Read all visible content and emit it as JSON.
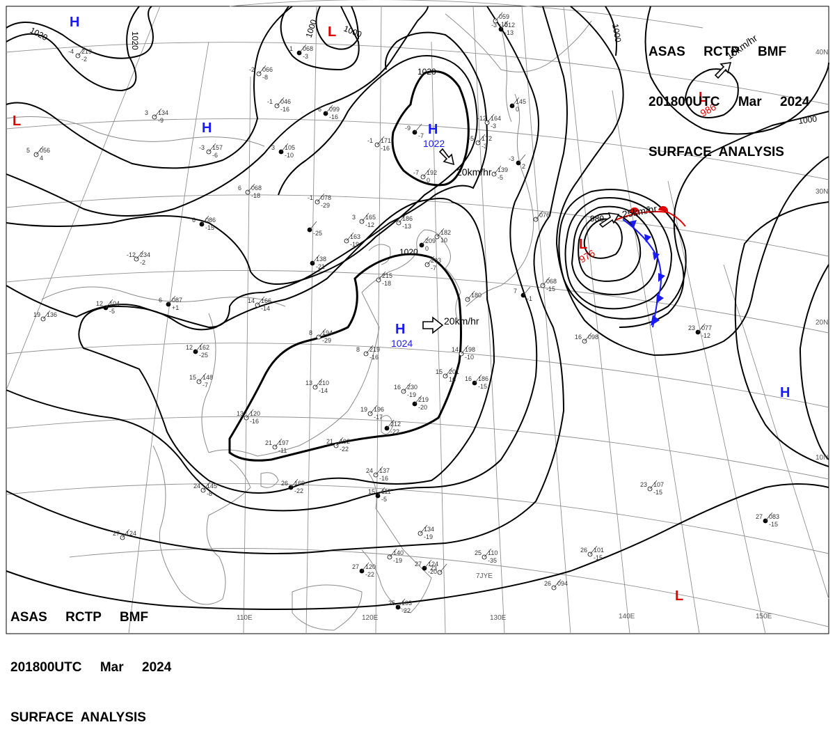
{
  "header_top": {
    "line1": "ASAS     RCTP     BMF",
    "line2": "201800UTC     Mar     2024",
    "line3": "SURFACE  ANALYSIS"
  },
  "header_bottom": {
    "line1": "ASAS     RCTP     BMF",
    "line2": "201800UTC     Mar     2024",
    "line3": "SURFACE  ANALYSIS"
  },
  "isobar_labels": [
    "1020",
    "1020",
    "1000",
    "1000",
    "1020",
    "1000",
    "1000",
    "1020",
    "980"
  ],
  "pressure_centers": [
    {
      "type": "H",
      "value": "",
      "color": "#1a1aff"
    },
    {
      "type": "L",
      "value": "",
      "color": "#e00000"
    },
    {
      "type": "H",
      "value": "",
      "color": "#1a1aff"
    },
    {
      "type": "L",
      "value": "",
      "color": "#e00000"
    },
    {
      "type": "H",
      "value": "1022",
      "color": "#1a1aff"
    },
    {
      "type": "L",
      "value": "986",
      "color": "#e00000"
    },
    {
      "type": "L",
      "value": "976",
      "color": "#e00000"
    },
    {
      "type": "H",
      "value": "1024",
      "color": "#1a1aff"
    },
    {
      "type": "H",
      "value": "",
      "color": "#1a1aff"
    },
    {
      "type": "L",
      "value": "",
      "color": "#e00000"
    }
  ],
  "motion_labels": [
    "20km/hr",
    "25km/hr",
    "20km/hr",
    "10km/hr"
  ],
  "latitude_labels": [
    "40N",
    "30N",
    "20N",
    "10N"
  ],
  "longitude_labels": [
    "110E",
    "120E",
    "130E",
    "140E",
    "150E"
  ],
  "station_labels": [
    "7JYE"
  ],
  "station_obs": [
    {
      "t": "-3",
      "p": "012",
      "d": "-13"
    },
    {
      "t": "",
      "p": "059",
      "d": "-15"
    },
    {
      "t": "-4",
      "p": "219",
      "d": "-2"
    },
    {
      "t": "1",
      "p": "068",
      "d": "-3"
    },
    {
      "t": "-2",
      "p": "066",
      "d": "-8"
    },
    {
      "t": "-1",
      "p": "046",
      "d": "-16"
    },
    {
      "t": "-6",
      "p": "099",
      "d": "-16"
    },
    {
      "t": "3",
      "p": "134",
      "d": "-9"
    },
    {
      "t": "-3",
      "p": "157",
      "d": "-6"
    },
    {
      "t": "3",
      "p": "105",
      "d": "-10"
    },
    {
      "t": "5",
      "p": "056",
      "d": "4"
    },
    {
      "t": "-1",
      "p": "171",
      "d": "-16"
    },
    {
      "t": "-9",
      "p": "",
      "d": "-7"
    },
    {
      "t": "-12",
      "p": "164",
      "d": "-3"
    },
    {
      "t": "-5",
      "p": "172",
      "d": "-3"
    },
    {
      "t": "",
      "p": "145",
      "d": "0"
    },
    {
      "t": "-7",
      "p": "192",
      "d": "0"
    },
    {
      "t": "",
      "p": "139",
      "d": "-5"
    },
    {
      "t": "-3",
      "p": "",
      "d": "2"
    },
    {
      "t": "6",
      "p": "068",
      "d": "-18"
    },
    {
      "t": "-1",
      "p": "078",
      "d": "-29"
    },
    {
      "t": "6",
      "p": "086",
      "d": "-15"
    },
    {
      "t": "3",
      "p": "165",
      "d": "-12"
    },
    {
      "t": "",
      "p": "186",
      "d": "-13"
    },
    {
      "t": "",
      "p": "",
      "d": "-25"
    },
    {
      "t": "",
      "p": "163",
      "d": "-19"
    },
    {
      "t": "",
      "p": "182",
      "d": "10"
    },
    {
      "t": "",
      "p": "209",
      "d": "0"
    },
    {
      "t": "",
      "p": "076",
      "d": ""
    },
    {
      "t": "-12",
      "p": "234",
      "d": "-2"
    },
    {
      "t": "",
      "p": "138",
      "d": "-21"
    },
    {
      "t": "",
      "p": "215",
      "d": "-18"
    },
    {
      "t": "",
      "p": "203",
      "d": "-7"
    },
    {
      "t": "6",
      "p": "087",
      "d": "+1"
    },
    {
      "t": "14",
      "p": "166",
      "d": "-14"
    },
    {
      "t": "",
      "p": "180",
      "d": ""
    },
    {
      "t": "7",
      "p": "",
      "d": "-1"
    },
    {
      "t": "",
      "p": "068",
      "d": "-15"
    },
    {
      "t": "19",
      "p": "136",
      "d": ""
    },
    {
      "t": "12",
      "p": "104",
      "d": "-5"
    },
    {
      "t": "8",
      "p": "194",
      "d": "-29"
    },
    {
      "t": "14",
      "p": "198",
      "d": "-10"
    },
    {
      "t": "12",
      "p": "162",
      "d": "-25"
    },
    {
      "t": "8",
      "p": "219",
      "d": "-16"
    },
    {
      "t": "16",
      "p": "098",
      "d": ""
    },
    {
      "t": "23",
      "p": "077",
      "d": "-12"
    },
    {
      "t": "15",
      "p": "148",
      "d": "-7"
    },
    {
      "t": "15",
      "p": "201",
      "d": "16"
    },
    {
      "t": "16",
      "p": "186",
      "d": "-15"
    },
    {
      "t": "13",
      "p": "210",
      "d": "-14"
    },
    {
      "t": "16",
      "p": "230",
      "d": "-19"
    },
    {
      "t": "",
      "p": "219",
      "d": "-20"
    },
    {
      "t": "13",
      "p": "120",
      "d": "-16"
    },
    {
      "t": "19",
      "p": "196",
      "d": "-17"
    },
    {
      "t": "",
      "p": "212",
      "d": "-22"
    },
    {
      "t": "21",
      "p": "197",
      "d": "-11"
    },
    {
      "t": "21",
      "p": "192",
      "d": "-22"
    },
    {
      "t": "26",
      "p": "169",
      "d": "-22"
    },
    {
      "t": "24",
      "p": "145",
      "d": "-8"
    },
    {
      "t": "24",
      "p": "137",
      "d": "-16"
    },
    {
      "t": "15",
      "p": "111",
      "d": "-5"
    },
    {
      "t": "23",
      "p": "107",
      "d": "-15"
    },
    {
      "t": "27",
      "p": "124",
      "d": ""
    },
    {
      "t": "27",
      "p": "083",
      "d": "-15"
    },
    {
      "t": "",
      "p": "134",
      "d": "-19"
    },
    {
      "t": "",
      "p": "140",
      "d": "-19"
    },
    {
      "t": "27",
      "p": "124",
      "d": "-20"
    },
    {
      "t": "25",
      "p": "110",
      "d": "-35"
    },
    {
      "t": "26",
      "p": "101",
      "d": "-15"
    },
    {
      "t": "27",
      "p": "120",
      "d": "-22"
    },
    {
      "t": "23",
      "p": "",
      "d": ""
    },
    {
      "t": "26",
      "p": "094",
      "d": ""
    },
    {
      "t": "25",
      "p": "103",
      "d": "-22"
    }
  ]
}
